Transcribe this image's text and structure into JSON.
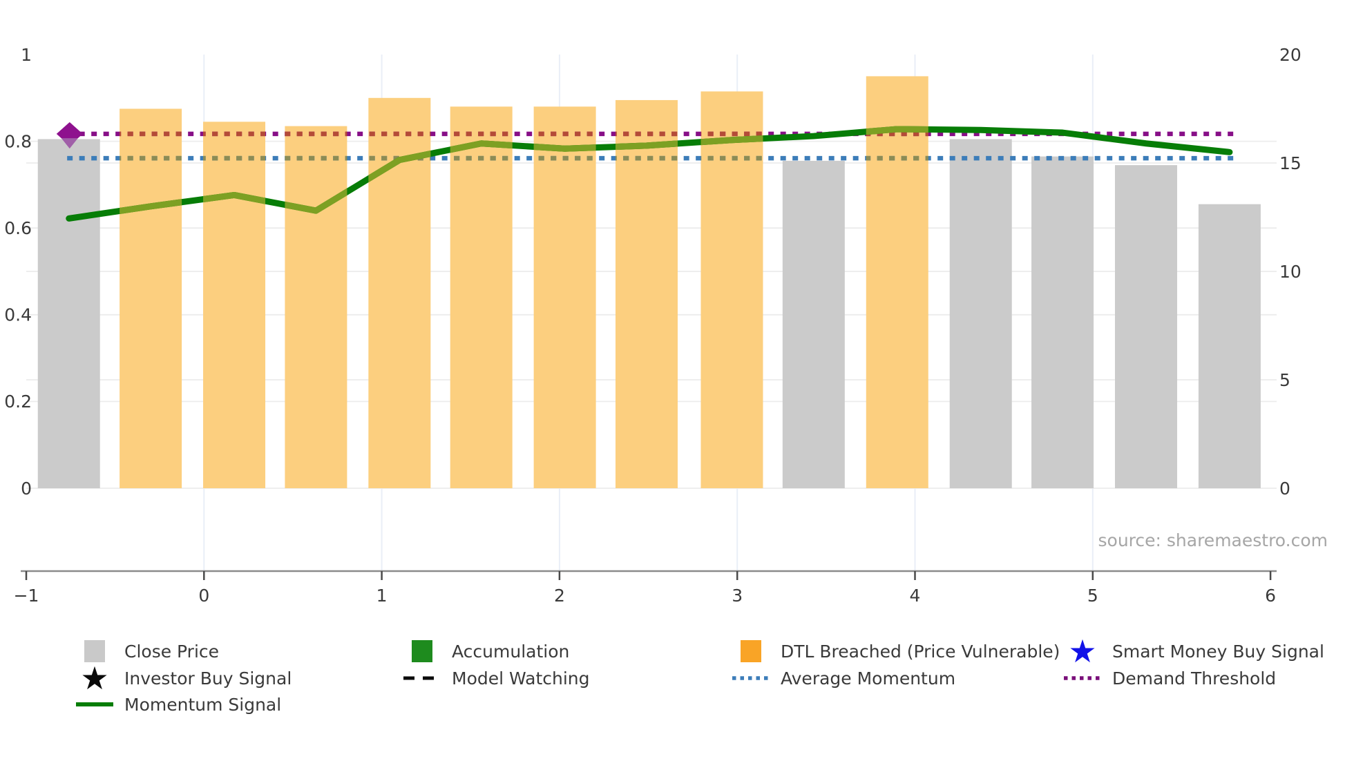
{
  "page": {
    "source_label": "source: sharemaestro.com"
  },
  "chart_data": {
    "type": "bar",
    "subtype": "composite-bar-and-line",
    "title": "",
    "xlabel": "",
    "ylabel_left": "",
    "ylabel_right": "",
    "x_axis": {
      "min": -1,
      "max": 6,
      "ticks": [
        -1,
        0,
        1,
        2,
        3,
        4,
        5,
        6
      ]
    },
    "y_axis_left": {
      "min": 0,
      "max": 1,
      "ticks": [
        0,
        0.2,
        0.4,
        0.6,
        0.8,
        1
      ]
    },
    "y_axis_right": {
      "min": 0,
      "max": 20,
      "ticks": [
        0,
        5,
        10,
        15,
        20
      ]
    },
    "grid": true,
    "bars": {
      "x": [
        -0.76,
        -0.3,
        0.17,
        0.63,
        1.1,
        1.56,
        2.03,
        2.49,
        2.97,
        3.43,
        3.9,
        4.37,
        4.83,
        5.3,
        5.77
      ],
      "close_price_right_axis": [
        16.1,
        17.5,
        16.9,
        16.7,
        18.0,
        17.6,
        17.6,
        17.9,
        18.3,
        15.1,
        19.0,
        16.1,
        15.3,
        14.9,
        13.1
      ],
      "status": [
        "close",
        "dtl",
        "dtl",
        "dtl",
        "dtl",
        "dtl",
        "dtl",
        "dtl",
        "dtl",
        "close",
        "dtl",
        "close",
        "close",
        "close",
        "close"
      ]
    },
    "series": [
      {
        "name": "Momentum Signal",
        "type": "line",
        "x": [
          -0.76,
          -0.3,
          0.17,
          0.63,
          1.1,
          1.56,
          2.03,
          2.49,
          2.97,
          3.43,
          3.9,
          4.37,
          4.83,
          5.3,
          5.77
        ],
        "values": [
          0.622,
          0.65,
          0.676,
          0.64,
          0.757,
          0.795,
          0.783,
          0.79,
          0.803,
          0.812,
          0.828,
          0.826,
          0.82,
          0.795,
          0.775
        ]
      },
      {
        "name": "Average Momentum",
        "type": "hline-dotted",
        "value": 0.761,
        "x_start": -0.77,
        "x_end": 5.78
      },
      {
        "name": "Demand Threshold",
        "type": "hline-dotted",
        "value": 0.817,
        "x_start": -0.77,
        "x_end": 5.78
      }
    ],
    "markers": [
      {
        "name": "purple-diamond-marker",
        "shape": "diamond",
        "x": -0.756,
        "y": 0.817
      },
      {
        "name": "purple-triangle-down-marker",
        "shape": "triangle-down",
        "x": -0.756,
        "y": 0.796
      }
    ],
    "legend": [
      {
        "label": "Close Price",
        "swatch": "square",
        "color": "#c9c9c9",
        "row": 1,
        "col": 1
      },
      {
        "label": "Accumulation",
        "swatch": "square",
        "color": "#1e8b1e",
        "row": 1,
        "col": 2
      },
      {
        "label": "DTL Breached (Price Vulnerable)",
        "swatch": "square",
        "color": "#f9a426",
        "row": 1,
        "col": 3
      },
      {
        "label": "Smart Money Buy Signal",
        "swatch": "star",
        "color": "#1212e8",
        "row": 1,
        "col": 4
      },
      {
        "label": "Investor Buy Signal",
        "swatch": "star",
        "color": "#0a0a0a",
        "row": 2,
        "col": 1
      },
      {
        "label": "Model Watching",
        "swatch": "dashed",
        "color": "#0a0a0a",
        "row": 2,
        "col": 2
      },
      {
        "label": "Average Momentum",
        "swatch": "dotted",
        "color": "#3c7db9",
        "row": 2,
        "col": 3
      },
      {
        "label": "Demand Threshold",
        "swatch": "dotted",
        "color": "#7a0f7a",
        "row": 2,
        "col": 4
      },
      {
        "label": "Momentum Signal",
        "swatch": "line",
        "color": "#077d07",
        "row": 3,
        "col": 1
      }
    ],
    "colors": {
      "close_price_bar": "#cbcbcb",
      "dtl_breached_bar": "#fccf7f",
      "momentum_line_green": "#077d07",
      "momentum_line_over_bars": "#7da023",
      "average_momentum_blue": "#3c7db9",
      "average_momentum_over_bars": "#8c8c55",
      "demand_threshold_purple": "#870f87",
      "demand_threshold_over_bars": "#b44b37",
      "diamond_marker": "#8e118e",
      "triangle_marker": "#a05fa8",
      "grid_horizontal": "#ececec",
      "grid_vertical": "#e9eef7",
      "axis_line": "#8a8a8a",
      "tick_text": "#3a3a3a"
    },
    "legend_position": "bottom",
    "layout_note_values_visible_only": true
  }
}
